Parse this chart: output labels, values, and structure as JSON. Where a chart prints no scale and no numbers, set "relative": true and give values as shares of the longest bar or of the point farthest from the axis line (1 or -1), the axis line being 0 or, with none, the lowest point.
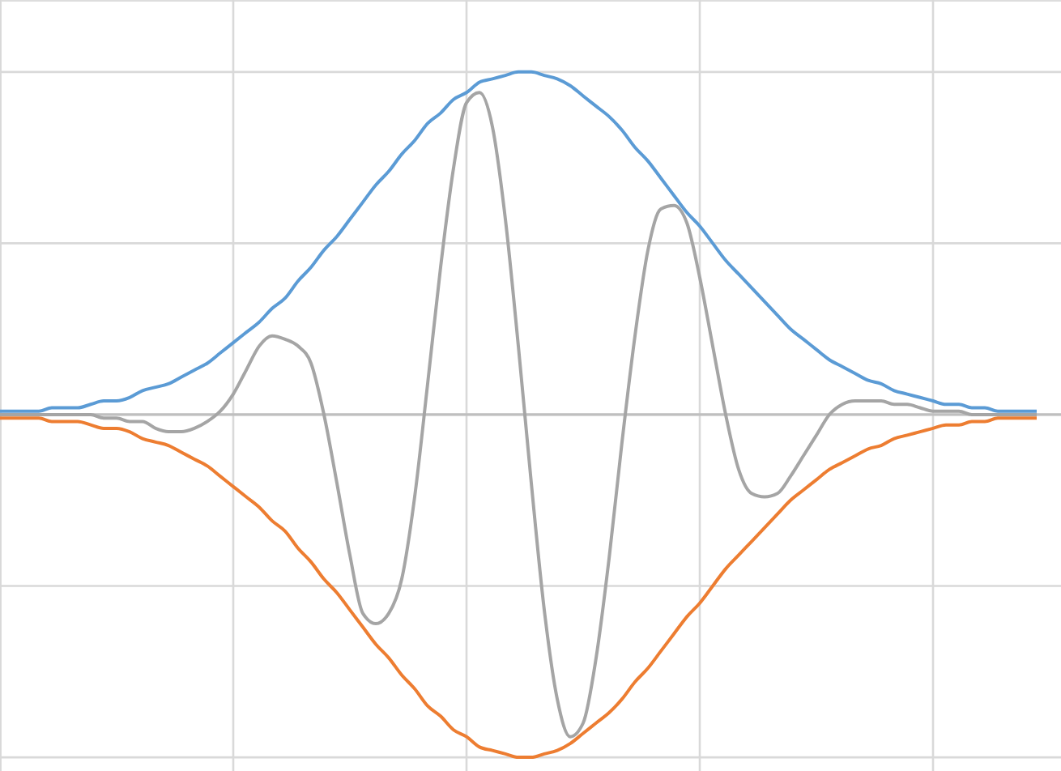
{
  "chart_data": {
    "type": "line",
    "relative": true,
    "grid": true,
    "marker": "none",
    "line_style": "solid",
    "categories": [
      null,
      null,
      null,
      null,
      null,
      null,
      null,
      null,
      null,
      null,
      null,
      null,
      null,
      null,
      null,
      null,
      null,
      null,
      null,
      null,
      null,
      null,
      null,
      null,
      null,
      null,
      null,
      null,
      null,
      null,
      null,
      null,
      null,
      null,
      null,
      null,
      null,
      null,
      null,
      null,
      null,
      null,
      null,
      null,
      null,
      null,
      null,
      null,
      null,
      null,
      null,
      null,
      null,
      null,
      null,
      null,
      null,
      null,
      null,
      null,
      null,
      null,
      null,
      null,
      null,
      null,
      null,
      null,
      null,
      null,
      null,
      null,
      null,
      null,
      null,
      null,
      null,
      null,
      null,
      null,
      null
    ],
    "series": [
      {
        "color": "#5b9bd5",
        "values": [
          0.01,
          0.01,
          0.01,
          0.01,
          0.02,
          0.02,
          0.02,
          0.03,
          0.04,
          0.04,
          0.05,
          0.07,
          0.08,
          0.09,
          0.11,
          0.13,
          0.15,
          0.18,
          0.21,
          0.24,
          0.27,
          0.31,
          0.34,
          0.39,
          0.43,
          0.48,
          0.52,
          0.57,
          0.62,
          0.67,
          0.71,
          0.76,
          0.8,
          0.85,
          0.88,
          0.92,
          0.94,
          0.97,
          0.98,
          0.99,
          1.0,
          1.0,
          0.99,
          0.98,
          0.96,
          0.93,
          0.9,
          0.87,
          0.83,
          0.78,
          0.74,
          0.69,
          0.64,
          0.59,
          0.55,
          0.5,
          0.45,
          0.41,
          0.37,
          0.33,
          0.29,
          0.25,
          0.22,
          0.19,
          0.16,
          0.14,
          0.12,
          0.1,
          0.09,
          0.07,
          0.06,
          0.05,
          0.04,
          0.03,
          0.03,
          0.02,
          0.02,
          0.01,
          0.01,
          0.01,
          0.01
        ]
      },
      {
        "color": "#ed7d31",
        "values": [
          -0.01,
          -0.01,
          -0.01,
          -0.01,
          -0.02,
          -0.02,
          -0.02,
          -0.03,
          -0.04,
          -0.04,
          -0.05,
          -0.07,
          -0.08,
          -0.09,
          -0.11,
          -0.13,
          -0.15,
          -0.18,
          -0.21,
          -0.24,
          -0.27,
          -0.31,
          -0.34,
          -0.39,
          -0.43,
          -0.48,
          -0.52,
          -0.57,
          -0.62,
          -0.67,
          -0.71,
          -0.76,
          -0.8,
          -0.85,
          -0.88,
          -0.92,
          -0.94,
          -0.97,
          -0.98,
          -0.99,
          -1.0,
          -1.0,
          -0.99,
          -0.98,
          -0.96,
          -0.93,
          -0.9,
          -0.87,
          -0.83,
          -0.78,
          -0.74,
          -0.69,
          -0.64,
          -0.59,
          -0.55,
          -0.5,
          -0.45,
          -0.41,
          -0.37,
          -0.33,
          -0.29,
          -0.25,
          -0.22,
          -0.19,
          -0.16,
          -0.14,
          -0.12,
          -0.1,
          -0.09,
          -0.07,
          -0.06,
          -0.05,
          -0.04,
          -0.03,
          -0.03,
          -0.02,
          -0.02,
          -0.01,
          -0.01,
          -0.01,
          -0.01
        ]
      },
      {
        "color": "#a5a5a5",
        "values": [
          0.0,
          0.0,
          0.0,
          0.0,
          0.0,
          0.0,
          0.0,
          0.0,
          -0.01,
          -0.01,
          -0.02,
          -0.02,
          -0.04,
          -0.05,
          -0.05,
          -0.04,
          -0.02,
          0.01,
          0.06,
          0.13,
          0.2,
          0.23,
          0.22,
          0.2,
          0.15,
          0.0,
          -0.2,
          -0.41,
          -0.58,
          -0.61,
          -0.58,
          -0.48,
          -0.24,
          0.09,
          0.43,
          0.72,
          0.91,
          0.94,
          0.84,
          0.57,
          0.2,
          -0.2,
          -0.57,
          -0.83,
          -0.94,
          -0.9,
          -0.71,
          -0.42,
          -0.08,
          0.23,
          0.48,
          0.6,
          0.61,
          0.56,
          0.4,
          0.2,
          0.0,
          -0.16,
          -0.23,
          -0.24,
          -0.23,
          -0.18,
          -0.12,
          -0.06,
          0.0,
          0.03,
          0.04,
          0.04,
          0.04,
          0.03,
          0.03,
          0.02,
          0.01,
          0.01,
          0.01,
          0.0,
          0.0,
          0.0,
          0.0,
          0.0,
          0.0
        ]
      }
    ]
  }
}
